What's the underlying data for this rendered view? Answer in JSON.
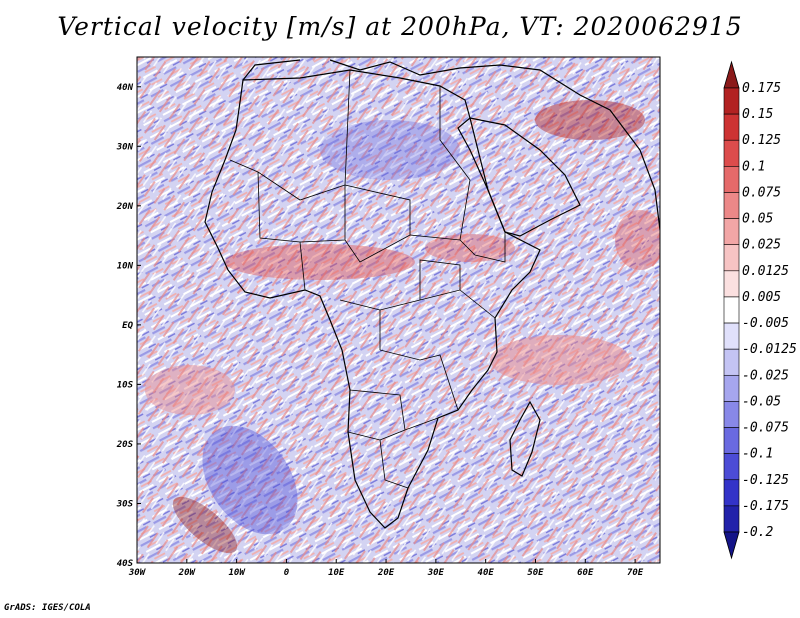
{
  "title": "Vertical velocity [m/s] at 200hPa, VT: 2020062915",
  "credit": "GrADS: IGES/COLA",
  "map": {
    "lon_labels": [
      "30W",
      "20W",
      "10W",
      "0",
      "10E",
      "20E",
      "30E",
      "40E",
      "50E",
      "60E",
      "70E"
    ],
    "lat_labels": [
      "40N",
      "30N",
      "20N",
      "10N",
      "EQ",
      "10S",
      "20S",
      "30S",
      "40S"
    ],
    "lon_range": [
      -30,
      75
    ],
    "lat_range": [
      -40,
      45
    ]
  },
  "colorbar": {
    "labels": [
      "0.175",
      "0.15",
      "0.125",
      "0.1",
      "0.075",
      "0.05",
      "0.025",
      "0.0125",
      "0.005",
      "-0.005",
      "-0.0125",
      "-0.025",
      "-0.05",
      "-0.075",
      "-0.1",
      "-0.125",
      "-0.175",
      "-0.2"
    ],
    "colors": [
      "#8b1a1a",
      "#b22222",
      "#cd3333",
      "#dc4c4c",
      "#e56a6a",
      "#ec8888",
      "#f2a6a6",
      "#f7c4c4",
      "#fbe0e0",
      "#ffffff",
      "#e0e0fb",
      "#c4c4f4",
      "#a6a6ee",
      "#8888e8",
      "#6a6ae0",
      "#4c4cd6",
      "#3333c8",
      "#2222aa",
      "#141488"
    ]
  }
}
